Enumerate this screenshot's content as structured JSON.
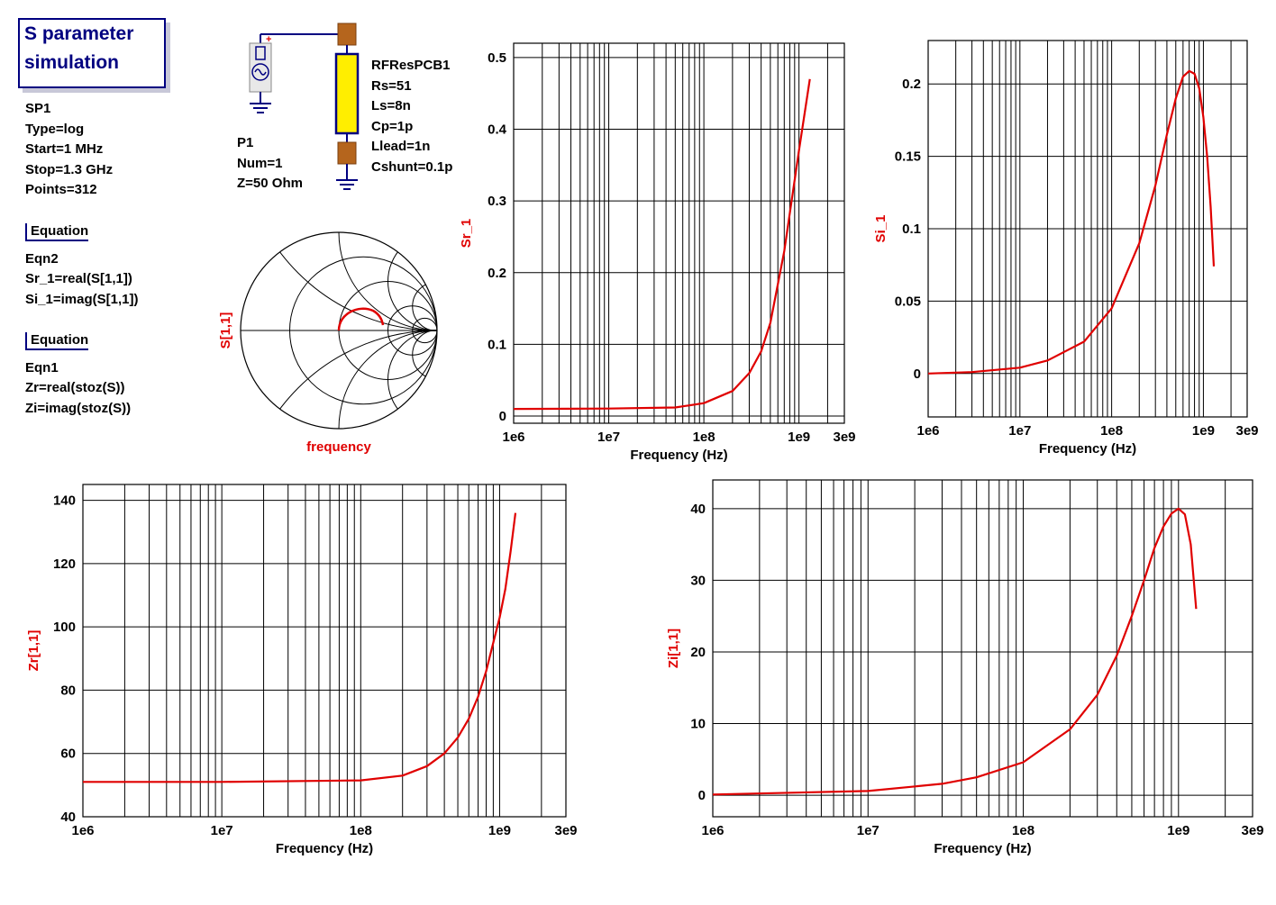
{
  "title": {
    "line1": "S parameter",
    "line2": "simulation"
  },
  "sim": [
    "SP1",
    "Type=log",
    "Start=1 MHz",
    "Stop=1.3 GHz",
    "Points=312"
  ],
  "eq2": {
    "header": "Equation",
    "lines": [
      "Eqn2",
      "Sr_1=real(S[1,1])",
      "Si_1=imag(S[1,1])"
    ]
  },
  "eq1": {
    "header": "Equation",
    "lines": [
      "Eqn1",
      "Zr=real(stoz(S))",
      "Zi=imag(stoz(S))"
    ]
  },
  "port": [
    "P1",
    "Num=1",
    "Z=50 Ohm"
  ],
  "component": [
    "RFResPCB1",
    "Rs=51",
    "Ls=8n",
    "Cp=1p",
    "Llead=1n",
    "Cshunt=0.1p"
  ],
  "smith": {
    "ylabel": "S[1,1]",
    "xlabel": "frequency"
  },
  "colors": {
    "trace": "#e00000",
    "grid": "#000000",
    "title": "#000080"
  },
  "chart_data": [
    {
      "id": "sr",
      "type": "line",
      "xscale": "log",
      "xlim": [
        1000000.0,
        3000000000.0
      ],
      "ylim": [
        -0.01,
        0.52
      ],
      "xticks": [
        "1e6",
        "1e7",
        "1e8",
        "1e9",
        "3e9"
      ],
      "yticks": [
        "0",
        "0.1",
        "0.2",
        "0.3",
        "0.4",
        "0.5"
      ],
      "xlabel": "Frequency (Hz)",
      "ylabel": "Sr_1",
      "series": [
        {
          "x": [
            1000000.0,
            10000000.0,
            50000000.0,
            100000000.0,
            200000000.0,
            300000000.0,
            400000000.0,
            500000000.0,
            700000000.0,
            1000000000.0,
            1300000000.0
          ],
          "y": [
            0.01,
            0.0105,
            0.012,
            0.018,
            0.035,
            0.06,
            0.09,
            0.13,
            0.23,
            0.37,
            0.47
          ]
        }
      ]
    },
    {
      "id": "si",
      "type": "line",
      "xscale": "log",
      "xlim": [
        1000000.0,
        3000000000.0
      ],
      "ylim": [
        -0.03,
        0.23
      ],
      "xticks": [
        "1e6",
        "1e7",
        "1e8",
        "1e9",
        "3e9"
      ],
      "yticks": [
        "0",
        "0.05",
        "0.1",
        "0.15",
        "0.2"
      ],
      "xlabel": "Frequency (Hz)",
      "ylabel": "Si_1",
      "series": [
        {
          "x": [
            1000000.0,
            3000000.0,
            10000000.0,
            20000000.0,
            50000000.0,
            100000000.0,
            200000000.0,
            300000000.0,
            400000000.0,
            500000000.0,
            600000000.0,
            700000000.0,
            800000000.0,
            900000000.0,
            1000000000.0,
            1100000000.0,
            1200000000.0,
            1300000000.0
          ],
          "y": [
            0.0,
            0.001,
            0.004,
            0.009,
            0.022,
            0.045,
            0.09,
            0.13,
            0.165,
            0.19,
            0.205,
            0.209,
            0.207,
            0.197,
            0.177,
            0.15,
            0.115,
            0.074
          ]
        }
      ]
    },
    {
      "id": "zr",
      "type": "line",
      "xscale": "log",
      "xlim": [
        1000000.0,
        3000000000.0
      ],
      "ylim": [
        40,
        145
      ],
      "xticks": [
        "1e6",
        "1e7",
        "1e8",
        "1e9",
        "3e9"
      ],
      "yticks": [
        "40",
        "60",
        "80",
        "100",
        "120",
        "140"
      ],
      "xlabel": "Frequency (Hz)",
      "ylabel": "Zr[1,1]",
      "series": [
        {
          "x": [
            1000000.0,
            10000000.0,
            100000000.0,
            200000000.0,
            300000000.0,
            400000000.0,
            500000000.0,
            600000000.0,
            700000000.0,
            800000000.0,
            900000000.0,
            1000000000.0,
            1100000000.0,
            1200000000.0,
            1300000000.0
          ],
          "y": [
            51,
            51,
            51.5,
            53,
            56,
            60,
            65,
            71,
            78,
            86,
            95,
            103,
            112,
            124,
            136
          ]
        }
      ]
    },
    {
      "id": "zi",
      "type": "line",
      "xscale": "log",
      "xlim": [
        1000000.0,
        3000000000.0
      ],
      "ylim": [
        -3,
        44
      ],
      "xticks": [
        "1e6",
        "1e7",
        "1e8",
        "1e9",
        "3e9"
      ],
      "yticks": [
        "0",
        "10",
        "20",
        "30",
        "40"
      ],
      "xlabel": "Frequency (Hz)",
      "ylabel": "Zi[1,1]",
      "series": [
        {
          "x": [
            1000000.0,
            10000000.0,
            30000000.0,
            50000000.0,
            100000000.0,
            200000000.0,
            300000000.0,
            400000000.0,
            500000000.0,
            600000000.0,
            700000000.0,
            800000000.0,
            900000000.0,
            1000000000.0,
            1100000000.0,
            1200000000.0,
            1300000000.0
          ],
          "y": [
            0.1,
            0.6,
            1.6,
            2.5,
            4.6,
            9.2,
            14,
            19.5,
            25,
            30,
            34.5,
            37.5,
            39.3,
            40,
            39.2,
            35,
            26
          ]
        }
      ]
    }
  ]
}
